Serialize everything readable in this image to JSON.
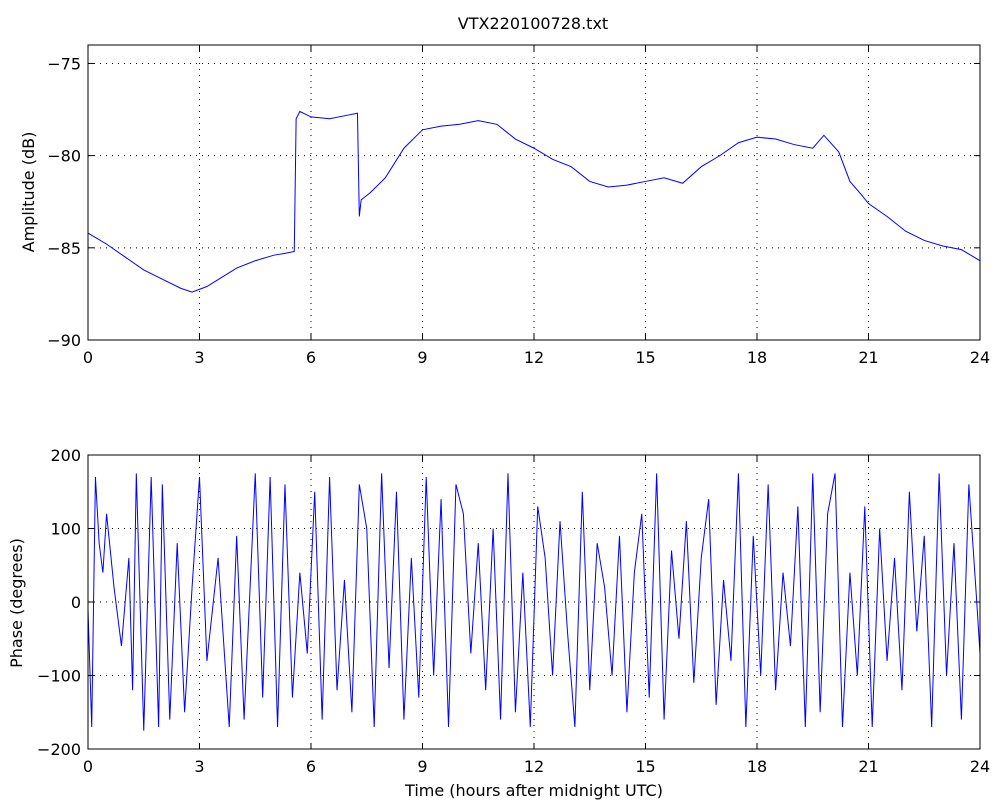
{
  "chart_data": [
    {
      "type": "line",
      "title": "VTX220100728.txt",
      "xlabel": "",
      "ylabel": "Amplitude (dB)",
      "xlim": [
        0,
        24
      ],
      "ylim": [
        -90,
        -74
      ],
      "xticks": [
        0,
        3,
        6,
        9,
        12,
        15,
        18,
        21,
        24
      ],
      "yticks": [
        -90,
        -85,
        -80,
        -75
      ],
      "xtick_labels": [
        "0",
        "3",
        "6",
        "9",
        "12",
        "15",
        "18",
        "21",
        "24"
      ],
      "ytick_labels": [
        "−90",
        "−85",
        "−80",
        "−75"
      ],
      "grid": true,
      "color": "#0000ff",
      "series": [
        {
          "x": [
            0,
            0.5,
            1,
            1.5,
            2,
            2.5,
            2.8,
            3.2,
            3.6,
            4,
            4.5,
            5,
            5.3,
            5.55,
            5.6,
            5.7,
            6,
            6.5,
            7,
            7.25,
            7.3,
            7.35,
            7.6,
            8,
            8.5,
            9,
            9.5,
            10,
            10.5,
            11,
            11.5,
            12,
            12.5,
            13,
            13.5,
            14,
            14.5,
            15,
            15.5,
            16,
            16.5,
            17,
            17.5,
            18,
            18.5,
            19,
            19.5,
            19.8,
            20.2,
            20.5,
            20.8,
            21,
            21.5,
            22,
            22.5,
            23,
            23.5,
            24
          ],
          "values": [
            -84.2,
            -84.8,
            -85.5,
            -86.2,
            -86.7,
            -87.2,
            -87.4,
            -87.1,
            -86.6,
            -86.1,
            -85.7,
            -85.4,
            -85.3,
            -85.2,
            -78.0,
            -77.6,
            -77.9,
            -78.0,
            -77.8,
            -77.7,
            -83.3,
            -82.4,
            -82.0,
            -81.2,
            -79.6,
            -78.6,
            -78.4,
            -78.3,
            -78.1,
            -78.3,
            -79.1,
            -79.6,
            -80.2,
            -80.6,
            -81.4,
            -81.7,
            -81.6,
            -81.4,
            -81.2,
            -81.5,
            -80.6,
            -80.0,
            -79.3,
            -79.0,
            -79.1,
            -79.4,
            -79.6,
            -78.9,
            -79.8,
            -81.4,
            -82.1,
            -82.6,
            -83.3,
            -84.1,
            -84.6,
            -84.9,
            -85.1,
            -85.7
          ]
        }
      ]
    },
    {
      "type": "line",
      "title": "",
      "xlabel": "Time (hours after midnight UTC)",
      "ylabel": "Phase (degrees)",
      "xlim": [
        0,
        24
      ],
      "ylim": [
        -200,
        200
      ],
      "xticks": [
        0,
        3,
        6,
        9,
        12,
        15,
        18,
        21,
        24
      ],
      "yticks": [
        -200,
        -100,
        0,
        100,
        200
      ],
      "xtick_labels": [
        "0",
        "3",
        "6",
        "9",
        "12",
        "15",
        "18",
        "21",
        "24"
      ],
      "ytick_labels": [
        "−200",
        "−100",
        "0",
        "100",
        "200"
      ],
      "grid": true,
      "color": "#0000ff",
      "series": [
        {
          "x": [
            0,
            0.1,
            0.2,
            0.3,
            0.4,
            0.5,
            0.7,
            0.9,
            1.1,
            1.2,
            1.3,
            1.5,
            1.7,
            1.9,
            2.0,
            2.2,
            2.4,
            2.6,
            2.8,
            3.0,
            3.2,
            3.5,
            3.8,
            4.0,
            4.2,
            4.5,
            4.7,
            4.9,
            5.1,
            5.3,
            5.5,
            5.7,
            5.9,
            6.1,
            6.3,
            6.5,
            6.7,
            6.9,
            7.1,
            7.3,
            7.5,
            7.7,
            7.9,
            8.1,
            8.3,
            8.5,
            8.7,
            8.9,
            9.1,
            9.3,
            9.5,
            9.7,
            9.9,
            10.1,
            10.3,
            10.5,
            10.7,
            10.9,
            11.1,
            11.3,
            11.5,
            11.7,
            11.9,
            12.1,
            12.3,
            12.5,
            12.7,
            12.9,
            13.1,
            13.3,
            13.5,
            13.7,
            13.9,
            14.1,
            14.3,
            14.5,
            14.7,
            14.9,
            15.1,
            15.3,
            15.5,
            15.7,
            15.9,
            16.1,
            16.3,
            16.5,
            16.7,
            16.9,
            17.1,
            17.3,
            17.5,
            17.7,
            17.9,
            18.1,
            18.3,
            18.5,
            18.7,
            18.9,
            19.1,
            19.3,
            19.5,
            19.7,
            19.9,
            20.1,
            20.3,
            20.5,
            20.7,
            20.9,
            21.1,
            21.3,
            21.5,
            21.7,
            21.9,
            22.1,
            22.3,
            22.5,
            22.7,
            22.9,
            23.1,
            23.3,
            23.5,
            23.7,
            23.9,
            24.0
          ],
          "values": [
            -10,
            -170,
            170,
            80,
            40,
            120,
            20,
            -60,
            60,
            -120,
            175,
            -175,
            170,
            -170,
            160,
            -160,
            80,
            -150,
            20,
            170,
            -80,
            60,
            -170,
            90,
            -160,
            175,
            -130,
            170,
            -170,
            160,
            -130,
            40,
            -70,
            150,
            -160,
            170,
            -120,
            30,
            -150,
            160,
            100,
            -170,
            175,
            -90,
            150,
            -160,
            60,
            -130,
            170,
            -100,
            140,
            -170,
            160,
            120,
            -70,
            80,
            -120,
            100,
            -160,
            175,
            -150,
            40,
            -170,
            130,
            60,
            -100,
            110,
            -40,
            -170,
            150,
            -120,
            80,
            20,
            -100,
            90,
            -150,
            40,
            120,
            -130,
            175,
            -160,
            70,
            -50,
            110,
            -110,
            60,
            140,
            -140,
            30,
            -80,
            175,
            -170,
            90,
            -100,
            160,
            -120,
            40,
            -60,
            130,
            -170,
            175,
            -150,
            120,
            175,
            -170,
            40,
            -100,
            130,
            -170,
            100,
            -80,
            60,
            -120,
            150,
            -40,
            90,
            -170,
            175,
            -100,
            80,
            -160,
            160,
            10,
            -70
          ]
        }
      ]
    }
  ]
}
